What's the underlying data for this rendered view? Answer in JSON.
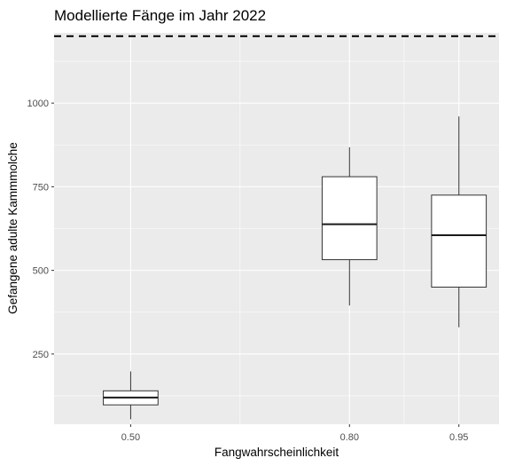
{
  "chart_data": {
    "type": "boxplot",
    "title": "Modellierte Fänge im Jahr 2022",
    "xlabel": "Fangwahrscheinlichkeit",
    "ylabel": "Gefangene adulte Kammmolche",
    "x_tick_labels": [
      "0.50",
      "0.80",
      "0.95"
    ],
    "x_positions": [
      0.5,
      0.8,
      0.95
    ],
    "xlim": [
      0.395,
      1.005
    ],
    "y_tick_labels": [
      "250",
      "500",
      "750",
      "1000"
    ],
    "y_ticks": [
      250,
      500,
      750,
      1000
    ],
    "ylim": [
      40,
      1210
    ],
    "reference_line": {
      "y": 1200,
      "style": "dashed"
    },
    "boxes": [
      {
        "x": 0.5,
        "min": 55,
        "q1": 98,
        "median": 120,
        "q3": 140,
        "max": 198
      },
      {
        "x": 0.8,
        "min": 395,
        "q1": 532,
        "median": 638,
        "q3": 780,
        "max": 868
      },
      {
        "x": 0.95,
        "min": 330,
        "q1": 450,
        "median": 605,
        "q3": 725,
        "max": 960
      }
    ],
    "grid": true,
    "colors": {
      "panel": "#ebebeb",
      "grid": "#ffffff",
      "box_fill": "#ffffff",
      "box_stroke": "#333333",
      "tick_text": "#4d4d4d"
    }
  }
}
